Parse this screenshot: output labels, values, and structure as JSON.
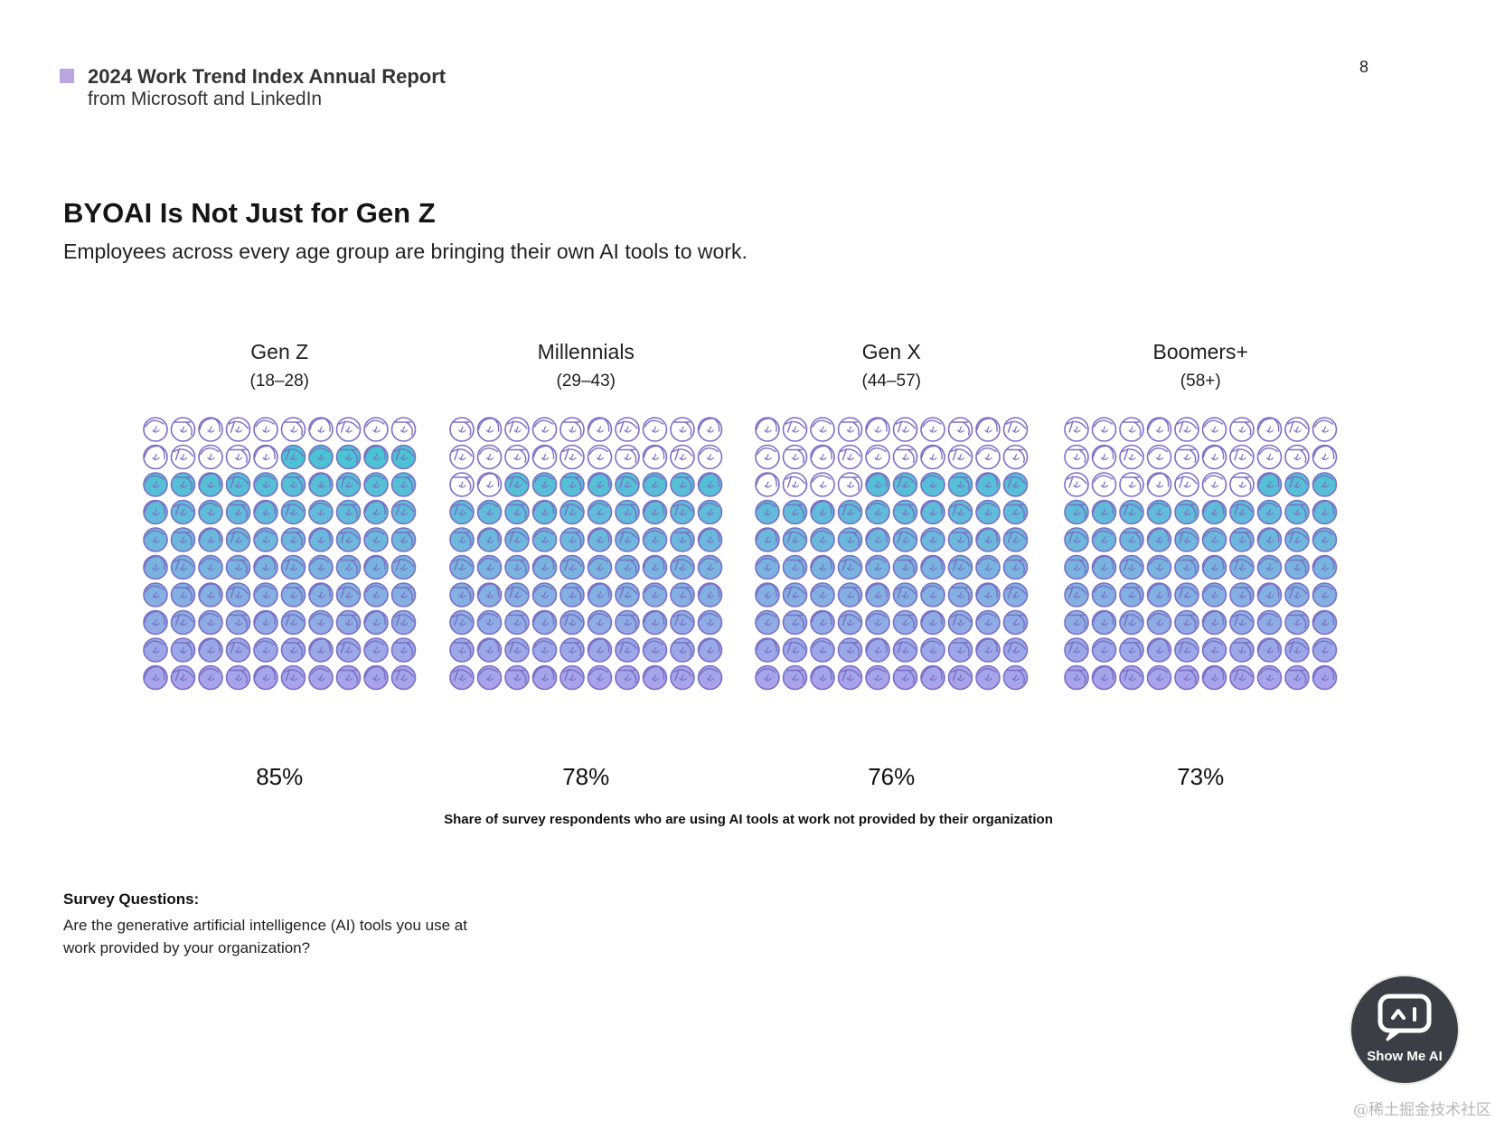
{
  "report": {
    "title": "2024 Work Trend Index Annual Report",
    "subtitle": "from Microsoft and LinkedIn",
    "page_number": "8",
    "accent_color": "#b9a6df"
  },
  "heading": "BYOAI Is Not Just for Gen Z",
  "subheading": "Employees across every age group are bringing their own AI tools to work.",
  "chart_data": {
    "type": "waffle",
    "grid": "10x10",
    "icon": "face-icon",
    "series": [
      {
        "name": "Gen Z",
        "range": "(18–28)",
        "value": 85,
        "label": "85%"
      },
      {
        "name": "Millennials",
        "range": "(29–43)",
        "value": 78,
        "label": "78%"
      },
      {
        "name": "Gen X",
        "range": "(44–57)",
        "value": 76,
        "label": "76%"
      },
      {
        "name": "Boomers+",
        "range": "(58+)",
        "value": 73,
        "label": "73%"
      }
    ],
    "caption": "Share of survey respondents who are using AI tools at work not provided by their organization",
    "colors": {
      "outline": "#7b6fc4",
      "gradient_top": "#3cc8d0",
      "gradient_bottom": "#c49af2"
    }
  },
  "survey": {
    "label": "Survey Questions:",
    "question": "Are the generative artificial intelligence (AI) tools you use at work provided by your organization?"
  },
  "logo": {
    "text": "Show Me AI",
    "icon": "robot-chat-icon"
  },
  "watermark": "@稀土掘金技术社区"
}
